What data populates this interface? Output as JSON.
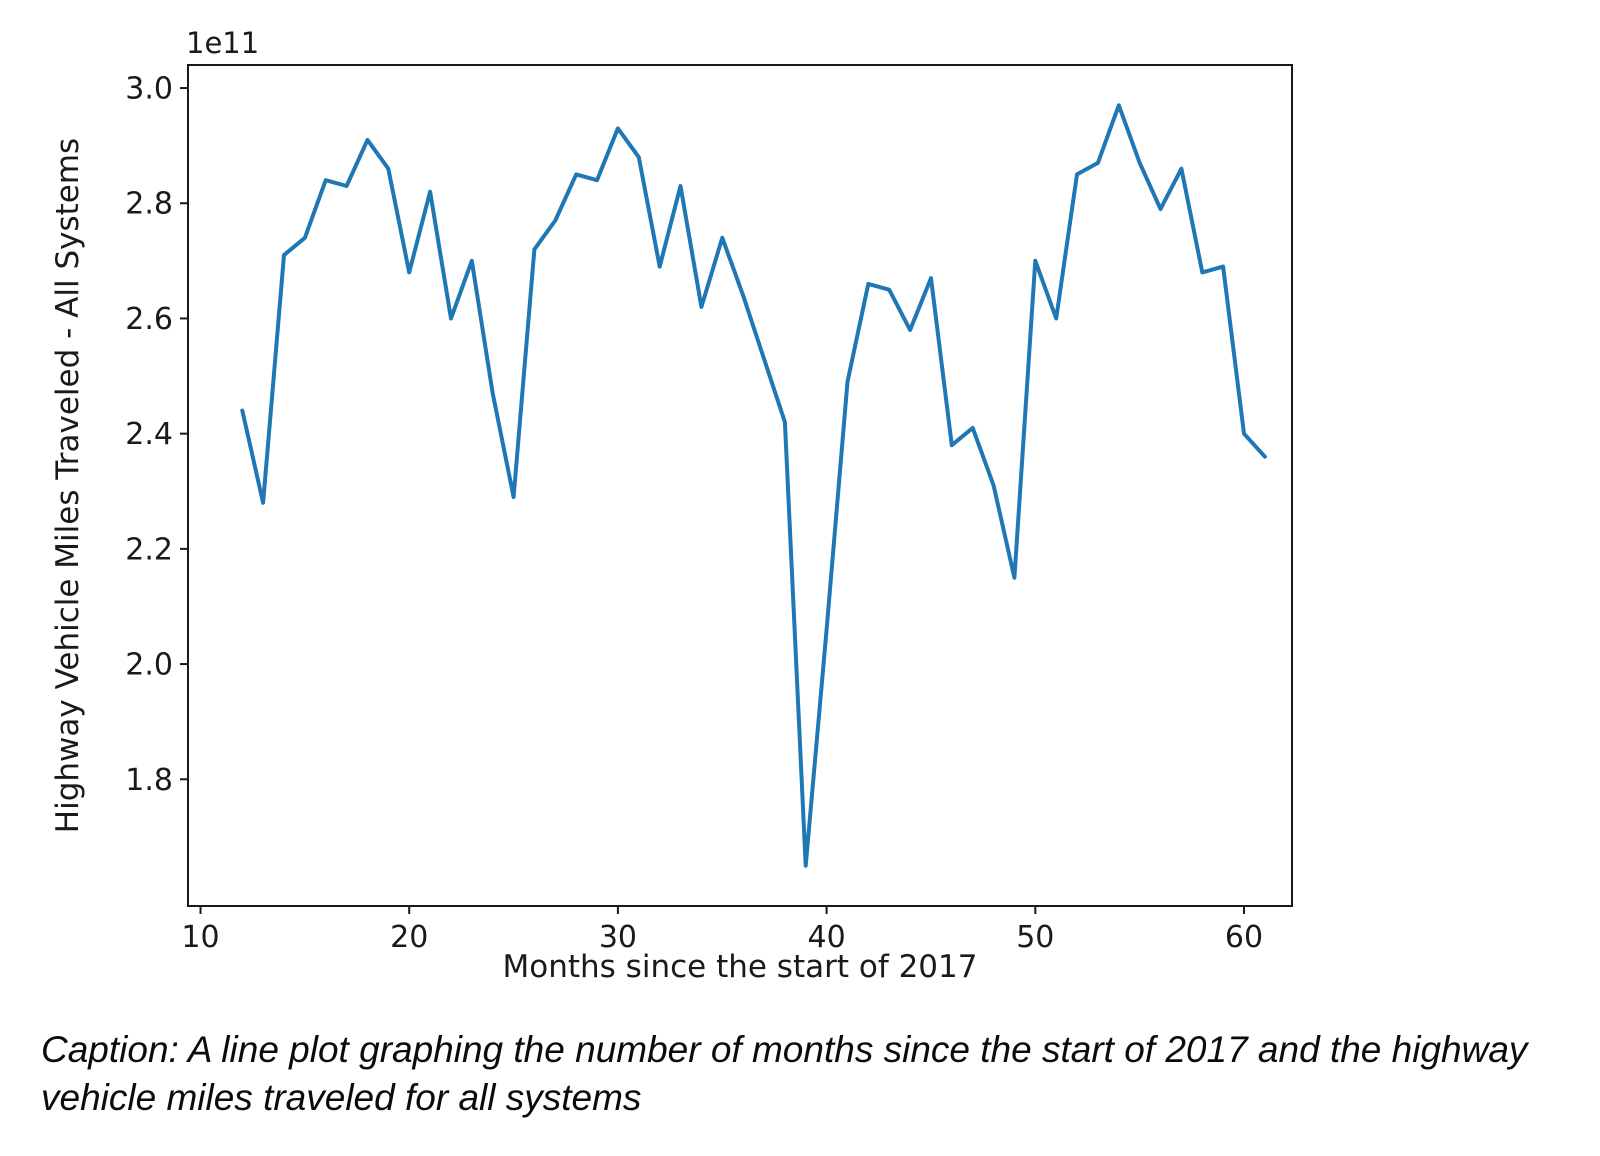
{
  "caption": {
    "line1": "Caption: A line plot graphing the number of months since the start of 2017 and the highway",
    "line2": "vehicle miles traveled for all systems"
  },
  "chart_data": {
    "type": "line",
    "title": "",
    "xlabel": "Months since the start of 2017",
    "ylabel": "Highway Vehicle Miles Traveled - All Systems",
    "offset_label": "1e11",
    "x": [
      12,
      13,
      14,
      15,
      16,
      17,
      18,
      19,
      20,
      21,
      22,
      23,
      24,
      25,
      26,
      27,
      28,
      29,
      30,
      31,
      32,
      33,
      34,
      35,
      36,
      37,
      38,
      39,
      40,
      41,
      42,
      43,
      44,
      45,
      46,
      47,
      48,
      49,
      50,
      51,
      52,
      53,
      54,
      55,
      56,
      57,
      58,
      59,
      60,
      61
    ],
    "y": [
      2.44,
      2.28,
      2.71,
      2.74,
      2.84,
      2.83,
      2.91,
      2.86,
      2.68,
      2.82,
      2.6,
      2.7,
      2.47,
      2.29,
      2.72,
      2.77,
      2.85,
      2.84,
      2.93,
      2.88,
      2.69,
      2.83,
      2.62,
      2.74,
      2.64,
      2.53,
      2.42,
      1.65,
      2.06,
      2.49,
      2.66,
      2.65,
      2.58,
      2.67,
      2.38,
      2.41,
      2.31,
      2.15,
      2.7,
      2.6,
      2.85,
      2.87,
      2.97,
      2.87,
      2.79,
      2.86,
      2.68,
      2.69,
      2.4,
      2.36
    ],
    "y_scale_factor": "1e11",
    "xticks": [
      10,
      20,
      30,
      40,
      50,
      60
    ],
    "yticks": [
      1.8,
      2.0,
      2.2,
      2.4,
      2.6,
      2.8,
      3.0
    ],
    "xlim": [
      9.4,
      62.3
    ],
    "ylim": [
      1.58,
      3.04
    ],
    "grid": false,
    "legend": null,
    "line_color": "#1f77b4",
    "axis_color": "#1a1a1a"
  }
}
